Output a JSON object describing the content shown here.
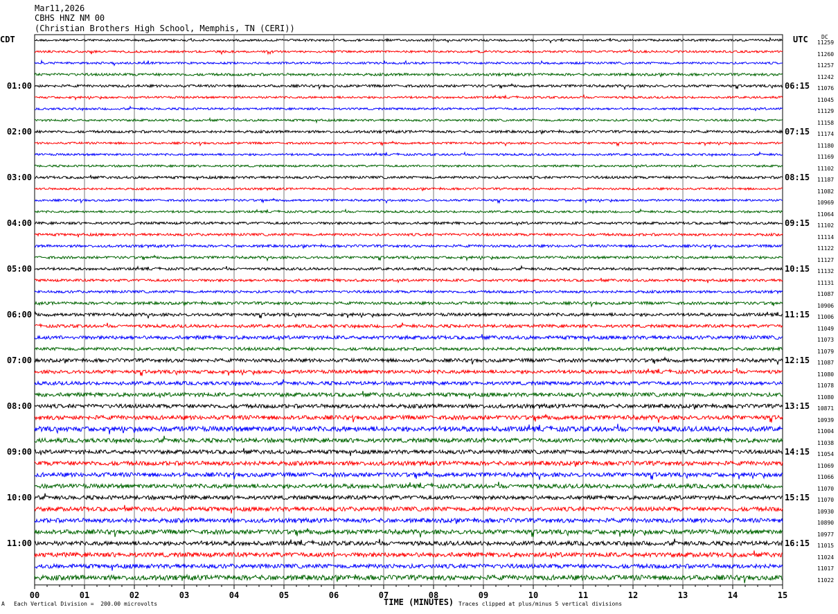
{
  "header": {
    "date": "Mar11,2026",
    "station": "CBHS HNZ NM 00",
    "location": "(Christian Brothers High School, Memphis, TN (CERI))"
  },
  "left_tz": "CDT",
  "right_tz": "UTC",
  "dc_title": "DC",
  "footer": {
    "mark": "A",
    "scale": "Each Vertical Division =  200.00 microvolts",
    "axis_title": "TIME (MINUTES)",
    "clip": "Traces clipped at plus/minus 5 vertical divisions"
  },
  "chart_data": {
    "type": "line",
    "title": "CBHS HNZ NM 00",
    "xlabel": "TIME (MINUTES)",
    "xlim": [
      0,
      15
    ],
    "x_ticks": [
      "00",
      "01",
      "02",
      "03",
      "04",
      "05",
      "06",
      "07",
      "08",
      "09",
      "10",
      "11",
      "12",
      "13",
      "14",
      "15"
    ],
    "trace_colors": [
      "#000000",
      "#ff0000",
      "#0000ff",
      "#006400"
    ],
    "traces_per_hour": 4,
    "left_hour_labels": [
      "01:00",
      "02:00",
      "03:00",
      "04:00",
      "05:00",
      "06:00",
      "07:00",
      "08:00",
      "09:00",
      "10:00",
      "11:00"
    ],
    "right_hour_labels": [
      "06:15",
      "07:15",
      "08:15",
      "09:15",
      "10:15",
      "11:15",
      "12:15",
      "13:15",
      "14:15",
      "15:15",
      "16:15"
    ],
    "dc_offsets": [
      "11259",
      "11260",
      "11257",
      "11242",
      "11076",
      "11045",
      "11129",
      "11158",
      "11174",
      "11180",
      "11169",
      "11102",
      "11187",
      "11082",
      "10969",
      "11064",
      "11102",
      "11114",
      "11122",
      "11127",
      "11132",
      "11131",
      "11087",
      "10906",
      "11006",
      "11049",
      "11073",
      "11079",
      "11087",
      "11080",
      "11078",
      "11080",
      "10871",
      "10939",
      "11004",
      "11038",
      "11054",
      "11069",
      "11066",
      "11070",
      "11070",
      "10930",
      "10890",
      "10977",
      "11015",
      "11024",
      "11017",
      "11022"
    ],
    "noise_amplitude": [
      1.5,
      1.5,
      1.5,
      1.8,
      1.8,
      1.5,
      1.5,
      1.5,
      1.8,
      1.5,
      1.5,
      1.5,
      1.8,
      1.5,
      1.5,
      1.5,
      1.8,
      1.8,
      1.8,
      1.8,
      1.8,
      1.8,
      1.8,
      2.0,
      2.2,
      2.2,
      2.5,
      2.2,
      2.5,
      2.5,
      2.5,
      2.8,
      2.8,
      3.0,
      3.5,
      3.0,
      2.8,
      3.0,
      3.0,
      3.0,
      2.8,
      3.0,
      3.0,
      3.2,
      3.0,
      3.2,
      3.0,
      3.5
    ]
  }
}
